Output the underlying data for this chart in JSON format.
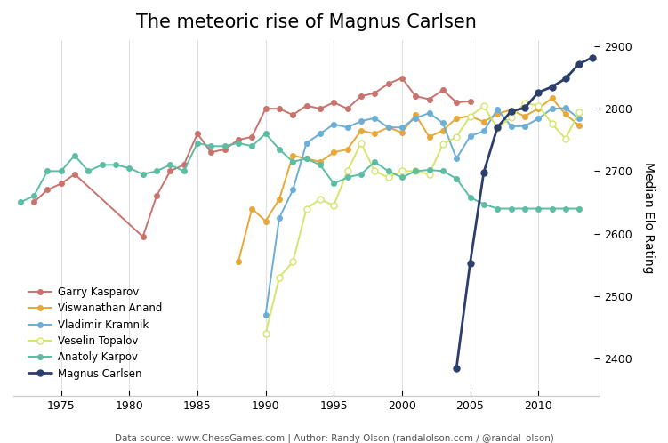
{
  "title": "The meteoric rise of Magnus Carlsen",
  "ylabel": "Median Elo Rating",
  "caption": "Data source: www.ChessGames.com | Author: Randy Olson (randalolson.com / @randal_olson)",
  "players": {
    "Garry Kasparov": {
      "color": "#c9736e",
      "marker": "o",
      "markersize": 4,
      "linewidth": 1.4,
      "open_marker": false,
      "data": {
        "1973": 2650,
        "1974": 2670,
        "1975": 2680,
        "1976": 2695,
        "1981": 2595,
        "1982": 2660,
        "1983": 2700,
        "1984": 2710,
        "1985": 2760,
        "1986": 2730,
        "1987": 2735,
        "1988": 2750,
        "1989": 2755,
        "1990": 2800,
        "1991": 2800,
        "1992": 2790,
        "1993": 2805,
        "1994": 2800,
        "1995": 2810,
        "1996": 2800,
        "1997": 2820,
        "1998": 2825,
        "1999": 2840,
        "2000": 2849,
        "2001": 2820,
        "2002": 2815,
        "2003": 2830,
        "2004": 2810,
        "2005": 2812
      }
    },
    "Viswanathan Anand": {
      "color": "#e8a838",
      "marker": "o",
      "markersize": 4,
      "linewidth": 1.4,
      "open_marker": false,
      "data": {
        "1988": 2555,
        "1989": 2640,
        "1990": 2620,
        "1991": 2655,
        "1992": 2725,
        "1993": 2720,
        "1994": 2715,
        "1995": 2730,
        "1996": 2735,
        "1997": 2765,
        "1998": 2760,
        "1999": 2770,
        "2000": 2762,
        "2001": 2790,
        "2002": 2755,
        "2003": 2765,
        "2004": 2785,
        "2005": 2788,
        "2006": 2779,
        "2007": 2792,
        "2008": 2798,
        "2009": 2788,
        "2010": 2800,
        "2011": 2817,
        "2012": 2791,
        "2013": 2773
      }
    },
    "Vladimir Kramnik": {
      "color": "#6baed6",
      "marker": "o",
      "markersize": 4,
      "linewidth": 1.4,
      "open_marker": false,
      "data": {
        "1990": 2470,
        "1991": 2625,
        "1992": 2670,
        "1993": 2745,
        "1994": 2760,
        "1995": 2775,
        "1996": 2770,
        "1997": 2780,
        "1998": 2785,
        "1999": 2770,
        "2000": 2770,
        "2001": 2785,
        "2002": 2793,
        "2003": 2777,
        "2004": 2720,
        "2005": 2756,
        "2006": 2764,
        "2007": 2799,
        "2008": 2772,
        "2009": 2772,
        "2010": 2784,
        "2011": 2800,
        "2012": 2801,
        "2013": 2784
      }
    },
    "Veselin Topalov": {
      "color": "#d4e56b",
      "marker": "o",
      "markersize": 5,
      "linewidth": 1.4,
      "open_marker": true,
      "data": {
        "1990": 2440,
        "1991": 2530,
        "1992": 2555,
        "1993": 2640,
        "1994": 2655,
        "1995": 2645,
        "1996": 2700,
        "1997": 2745,
        "1998": 2700,
        "1999": 2690,
        "2000": 2700,
        "2001": 2700,
        "2002": 2695,
        "2003": 2743,
        "2004": 2755,
        "2005": 2788,
        "2006": 2804,
        "2007": 2769,
        "2008": 2786,
        "2009": 2809,
        "2010": 2805,
        "2011": 2776,
        "2012": 2752,
        "2013": 2795
      }
    },
    "Anatoly Karpov": {
      "color": "#5bbda4",
      "marker": "o",
      "markersize": 4,
      "linewidth": 1.4,
      "open_marker": false,
      "data": {
        "1972": 2650,
        "1973": 2660,
        "1974": 2700,
        "1975": 2700,
        "1976": 2725,
        "1977": 2700,
        "1978": 2710,
        "1979": 2710,
        "1980": 2705,
        "1981": 2695,
        "1982": 2700,
        "1983": 2710,
        "1984": 2700,
        "1985": 2745,
        "1986": 2740,
        "1987": 2740,
        "1988": 2745,
        "1989": 2740,
        "1990": 2760,
        "1991": 2735,
        "1992": 2715,
        "1993": 2720,
        "1994": 2710,
        "1995": 2680,
        "1996": 2690,
        "1997": 2695,
        "1998": 2715,
        "1999": 2700,
        "2000": 2690,
        "2001": 2700,
        "2002": 2702,
        "2003": 2700,
        "2004": 2688,
        "2005": 2658,
        "2006": 2647,
        "2007": 2640,
        "2008": 2640,
        "2009": 2640,
        "2010": 2640,
        "2011": 2640,
        "2012": 2640,
        "2013": 2640
      }
    },
    "Magnus Carlsen": {
      "color": "#2c3e6b",
      "marker": "o",
      "markersize": 5,
      "linewidth": 2.0,
      "open_marker": false,
      "data": {
        "2004": 2385,
        "2005": 2553,
        "2006": 2698,
        "2007": 2770,
        "2008": 2796,
        "2009": 2801,
        "2010": 2826,
        "2011": 2835,
        "2012": 2848,
        "2013": 2872,
        "2014": 2882
      }
    }
  },
  "xlim": [
    1971.5,
    2014.5
  ],
  "ylim": [
    2340,
    2910
  ],
  "yticks": [
    2400,
    2500,
    2600,
    2700,
    2800,
    2900
  ],
  "xticks": [
    1975,
    1980,
    1985,
    1990,
    1995,
    2000,
    2005,
    2010
  ],
  "background_color": "#ffffff",
  "grid_color": "#e0e0e0",
  "spine_color": "#cccccc"
}
